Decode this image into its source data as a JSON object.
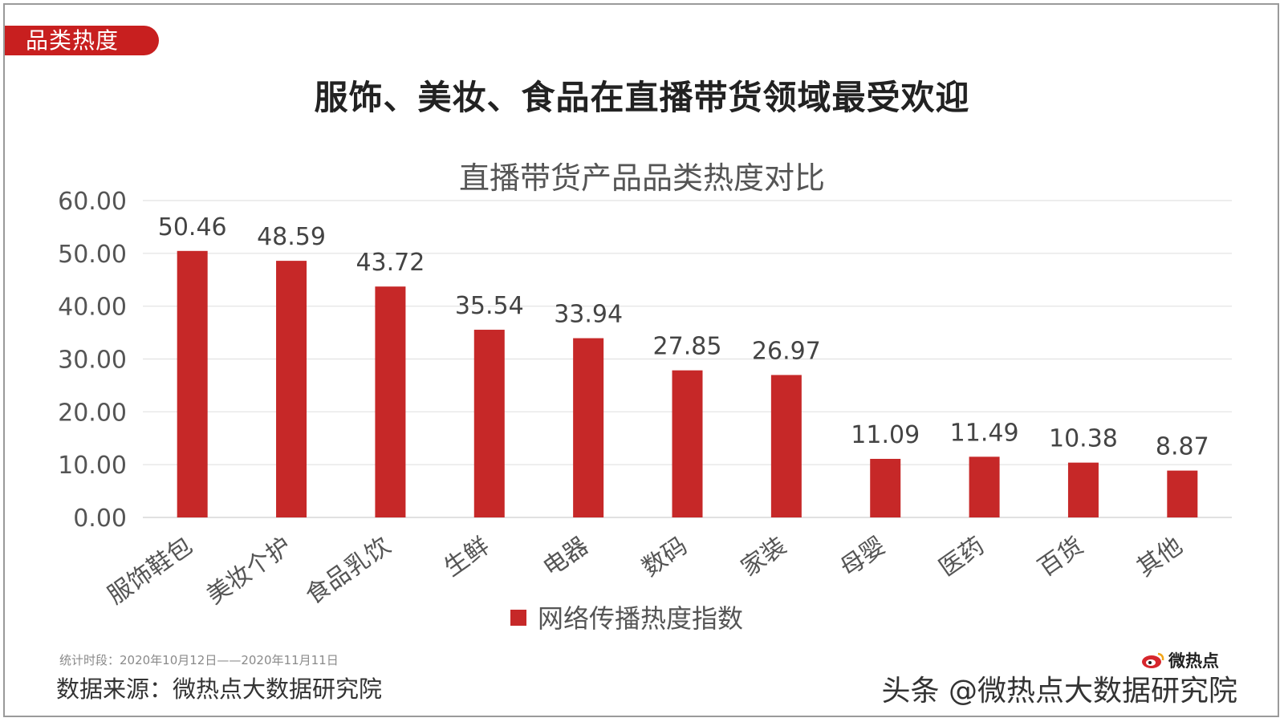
{
  "tag_label": "品类热度",
  "headline": "服饰、美妆、食品在直播带货领域最受欢迎",
  "chart_data": {
    "type": "bar",
    "title": "直播带货产品品类热度对比",
    "categories": [
      "服饰鞋包",
      "美妆个护",
      "食品乳饮",
      "生鲜",
      "电器",
      "数码",
      "家装",
      "母婴",
      "医药",
      "百货",
      "其他"
    ],
    "values": [
      50.46,
      48.59,
      43.72,
      35.54,
      33.94,
      27.85,
      26.97,
      11.09,
      11.49,
      10.38,
      8.87
    ],
    "value_labels": [
      "50.46",
      "48.59",
      "43.72",
      "35.54",
      "33.94",
      "27.85",
      "26.97",
      "11.09",
      "11.49",
      "10.38",
      "8.87"
    ],
    "series": [
      {
        "name": "网络传播热度指数",
        "color": "#c62828"
      }
    ],
    "ylim": [
      0,
      60
    ],
    "yticks": [
      "0.00",
      "10.00",
      "20.00",
      "30.00",
      "40.00",
      "50.00",
      "60.00"
    ],
    "grid": true,
    "legend_position": "bottom"
  },
  "footer": {
    "period": "统计时段：2020年10月12日——2020年11月11日",
    "source": "数据来源：微热点大数据研究院"
  },
  "watermark": {
    "text": "头条 @微热点大数据研究院",
    "brand": "微热点",
    "logo_icon": "weibo-logo-icon"
  }
}
